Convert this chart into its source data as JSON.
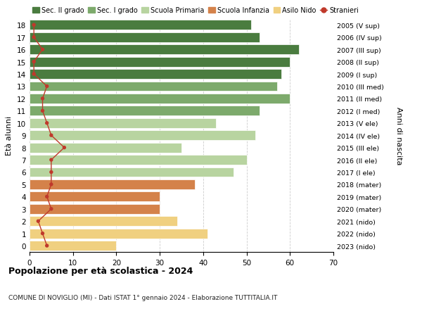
{
  "ages": [
    18,
    17,
    16,
    15,
    14,
    13,
    12,
    11,
    10,
    9,
    8,
    7,
    6,
    5,
    4,
    3,
    2,
    1,
    0
  ],
  "bar_values": [
    51,
    53,
    62,
    60,
    58,
    57,
    60,
    53,
    43,
    52,
    35,
    50,
    47,
    38,
    30,
    30,
    34,
    41,
    20
  ],
  "stranieri_values": [
    1,
    1,
    3,
    1,
    1,
    4,
    3,
    3,
    4,
    5,
    8,
    5,
    5,
    5,
    4,
    5,
    2,
    3,
    4
  ],
  "right_labels": [
    "2005 (V sup)",
    "2006 (IV sup)",
    "2007 (III sup)",
    "2008 (II sup)",
    "2009 (I sup)",
    "2010 (III med)",
    "2011 (II med)",
    "2012 (I med)",
    "2013 (V ele)",
    "2014 (IV ele)",
    "2015 (III ele)",
    "2016 (II ele)",
    "2017 (I ele)",
    "2018 (mater)",
    "2019 (mater)",
    "2020 (mater)",
    "2021 (nido)",
    "2022 (nido)",
    "2023 (nido)"
  ],
  "bar_colors": [
    "#4a7c3f",
    "#4a7c3f",
    "#4a7c3f",
    "#4a7c3f",
    "#4a7c3f",
    "#7daa6c",
    "#7daa6c",
    "#7daa6c",
    "#b8d4a0",
    "#b8d4a0",
    "#b8d4a0",
    "#b8d4a0",
    "#b8d4a0",
    "#d4824a",
    "#d4824a",
    "#d4824a",
    "#f0d080",
    "#f0d080",
    "#f0d080"
  ],
  "legend_items": [
    {
      "label": "Sec. II grado",
      "color": "#4a7c3f"
    },
    {
      "label": "Sec. I grado",
      "color": "#7daa6c"
    },
    {
      "label": "Scuola Primaria",
      "color": "#b8d4a0"
    },
    {
      "label": "Scuola Infanzia",
      "color": "#d4824a"
    },
    {
      "label": "Asilo Nido",
      "color": "#f0d080"
    },
    {
      "label": "Stranieri",
      "color": "#c0392b"
    }
  ],
  "ylabel": "Età alunni",
  "right_ylabel": "Anni di nascita",
  "title": "Popolazione per età scolastica - 2024",
  "subtitle": "COMUNE DI NOVIGLIO (MI) - Dati ISTAT 1° gennaio 2024 - Elaborazione TUTTITALIA.IT",
  "xlim": [
    0,
    70
  ],
  "background_color": "#ffffff",
  "grid_color": "#cccccc"
}
